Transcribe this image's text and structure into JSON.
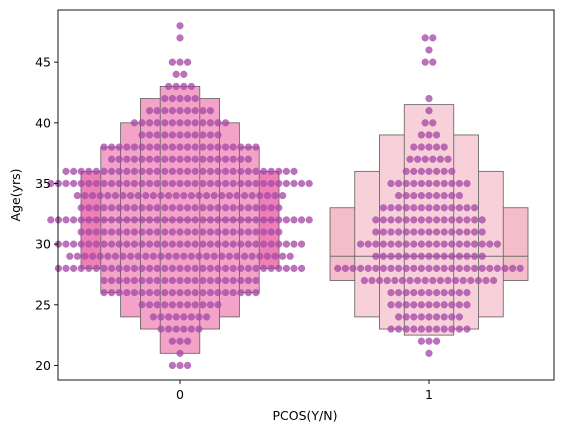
{
  "chart_data": {
    "type": "boxen-swarm",
    "title": "",
    "xlabel": "PCOS(Y/N)",
    "ylabel": "Age(yrs)",
    "categories": [
      "0",
      "1"
    ],
    "ylim": [
      18.8,
      49.3
    ],
    "yticks": [
      20,
      25,
      30,
      35,
      40,
      45
    ],
    "grid": false,
    "colors": {
      "box_0": "#ef7fb6",
      "box_0_light": "#f3a3c8",
      "box_1": "#f5bcc9",
      "box_1_light": "#f8d0da",
      "swarm": "#a64aa6",
      "median_line": "#6e6e6e"
    },
    "boxen": [
      {
        "category": "0",
        "median": 32,
        "levels": [
          {
            "low": 28,
            "high": 36
          },
          {
            "low": 26,
            "high": 38
          },
          {
            "low": 24,
            "high": 40
          },
          {
            "low": 23,
            "high": 42
          },
          {
            "low": 21,
            "high": 43
          }
        ]
      },
      {
        "category": "1",
        "median": 29,
        "levels": [
          {
            "low": 27,
            "high": 33
          },
          {
            "low": 24,
            "high": 36
          },
          {
            "low": 23,
            "high": 39
          },
          {
            "low": 22.5,
            "high": 41.5
          }
        ]
      }
    ],
    "swarm_counts": [
      {
        "category": "0",
        "ages": [
          20,
          21,
          22,
          23,
          24,
          25,
          26,
          27,
          28,
          29,
          30,
          31,
          32,
          33,
          34,
          35,
          36,
          37,
          38,
          39,
          40,
          41,
          42,
          43,
          44,
          45,
          47,
          48
        ],
        "counts": [
          3,
          1,
          3,
          6,
          8,
          11,
          21,
          21,
          33,
          30,
          33,
          27,
          35,
          27,
          28,
          35,
          31,
          19,
          21,
          11,
          13,
          9,
          5,
          4,
          2,
          3,
          1,
          1
        ]
      },
      {
        "category": "1",
        "ages": [
          21,
          22,
          23,
          24,
          25,
          26,
          27,
          28,
          29,
          30,
          31,
          32,
          33,
          34,
          35,
          36,
          37,
          38,
          39,
          40,
          41,
          42,
          45,
          46,
          47
        ],
        "counts": [
          1,
          3,
          11,
          9,
          11,
          11,
          18,
          25,
          15,
          19,
          15,
          15,
          13,
          9,
          11,
          7,
          6,
          5,
          3,
          2,
          1,
          1,
          2,
          1,
          2
        ]
      }
    ]
  }
}
